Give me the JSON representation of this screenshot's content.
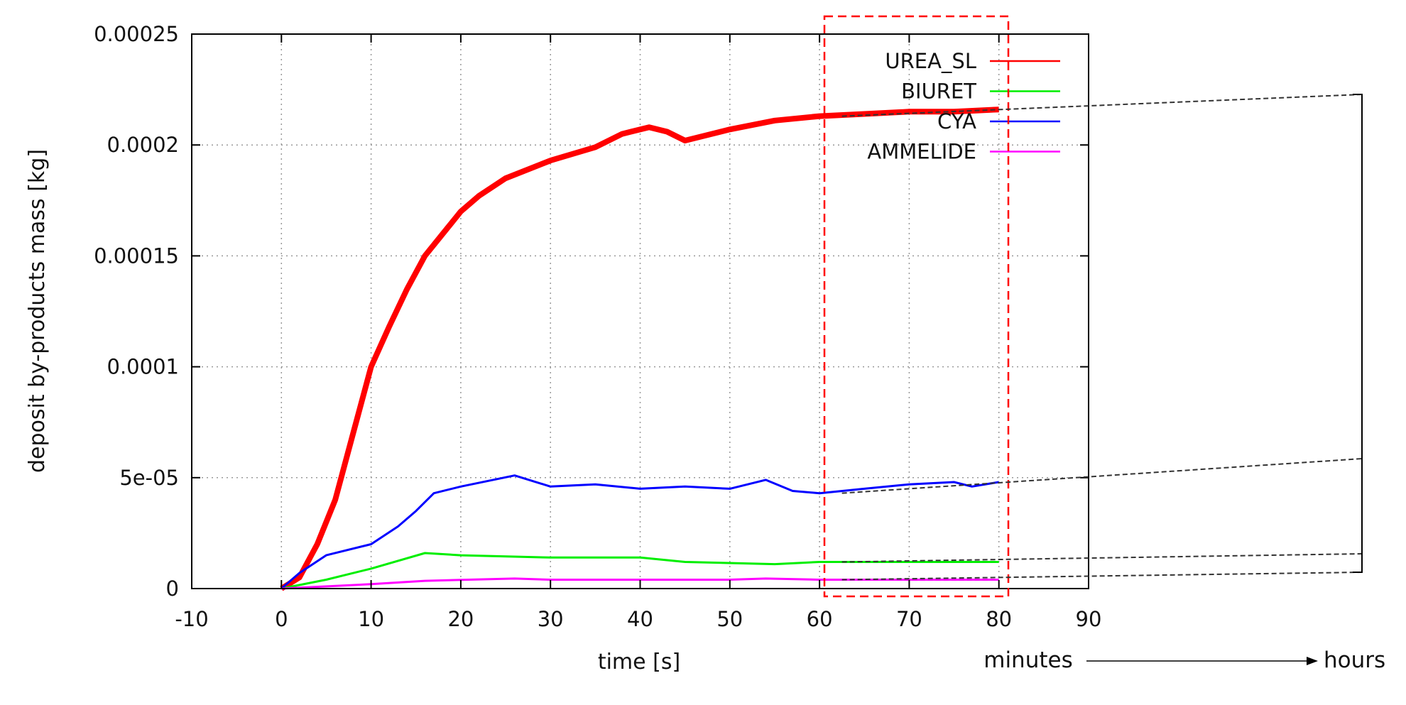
{
  "chart_data": {
    "type": "line",
    "xlabel": "time [s]",
    "ylabel": "deposit by-products mass [kg]",
    "xlim": [
      -10,
      90
    ],
    "ylim": [
      0,
      0.00025
    ],
    "xticks": [
      "-10",
      "0",
      "10",
      "20",
      "30",
      "40",
      "50",
      "60",
      "70",
      "80",
      "90"
    ],
    "yticks": [
      "0",
      "5e-05",
      "0.0001",
      "0.00015",
      "0.0002",
      "0.00025"
    ],
    "grid": true,
    "legend_position": "top-right",
    "series": [
      {
        "name": "UREA_SL",
        "color": "#ff0000",
        "x": [
          0,
          2,
          4,
          6,
          8,
          10,
          12,
          14,
          16,
          18,
          20,
          22,
          25,
          30,
          35,
          38,
          41,
          43,
          45,
          50,
          55,
          60,
          65,
          70,
          75,
          80
        ],
        "y": [
          0,
          5e-06,
          2e-05,
          4e-05,
          7e-05,
          0.0001,
          0.000118,
          0.000135,
          0.00015,
          0.00016,
          0.00017,
          0.000177,
          0.000185,
          0.000193,
          0.000199,
          0.000205,
          0.000208,
          0.000206,
          0.000202,
          0.000207,
          0.000211,
          0.000213,
          0.000214,
          0.000215,
          0.000215,
          0.000216
        ]
      },
      {
        "name": "BIURET",
        "color": "#00ee00",
        "x": [
          0,
          5,
          10,
          16,
          20,
          30,
          40,
          45,
          55,
          60,
          80
        ],
        "y": [
          0,
          4e-06,
          9e-06,
          1.6e-05,
          1.5e-05,
          1.4e-05,
          1.4e-05,
          1.2e-05,
          1.1e-05,
          1.2e-05,
          1.2e-05
        ]
      },
      {
        "name": "CYA",
        "color": "#0000ff",
        "x": [
          0,
          2,
          5,
          10,
          13,
          15,
          17,
          20,
          26,
          30,
          35,
          40,
          45,
          50,
          54,
          57,
          60,
          65,
          70,
          75,
          77,
          80
        ],
        "y": [
          0,
          7e-06,
          1.5e-05,
          2e-05,
          2.8e-05,
          3.5e-05,
          4.3e-05,
          4.6e-05,
          5.1e-05,
          4.6e-05,
          4.7e-05,
          4.5e-05,
          4.6e-05,
          4.5e-05,
          4.9e-05,
          4.4e-05,
          4.3e-05,
          4.5e-05,
          4.7e-05,
          4.8e-05,
          4.6e-05,
          4.8e-05
        ]
      },
      {
        "name": "AMMELIDE",
        "color": "#ff00ff",
        "x": [
          0,
          10,
          16,
          26,
          30,
          50,
          54,
          60,
          80
        ],
        "y": [
          0,
          2e-06,
          3.5e-06,
          4.5e-06,
          4e-06,
          4e-06,
          4.5e-06,
          4e-06,
          4e-06
        ]
      }
    ],
    "annotations": {
      "minutes": "minutes",
      "hours": "hours",
      "highlight_color": "#ff0000"
    }
  }
}
